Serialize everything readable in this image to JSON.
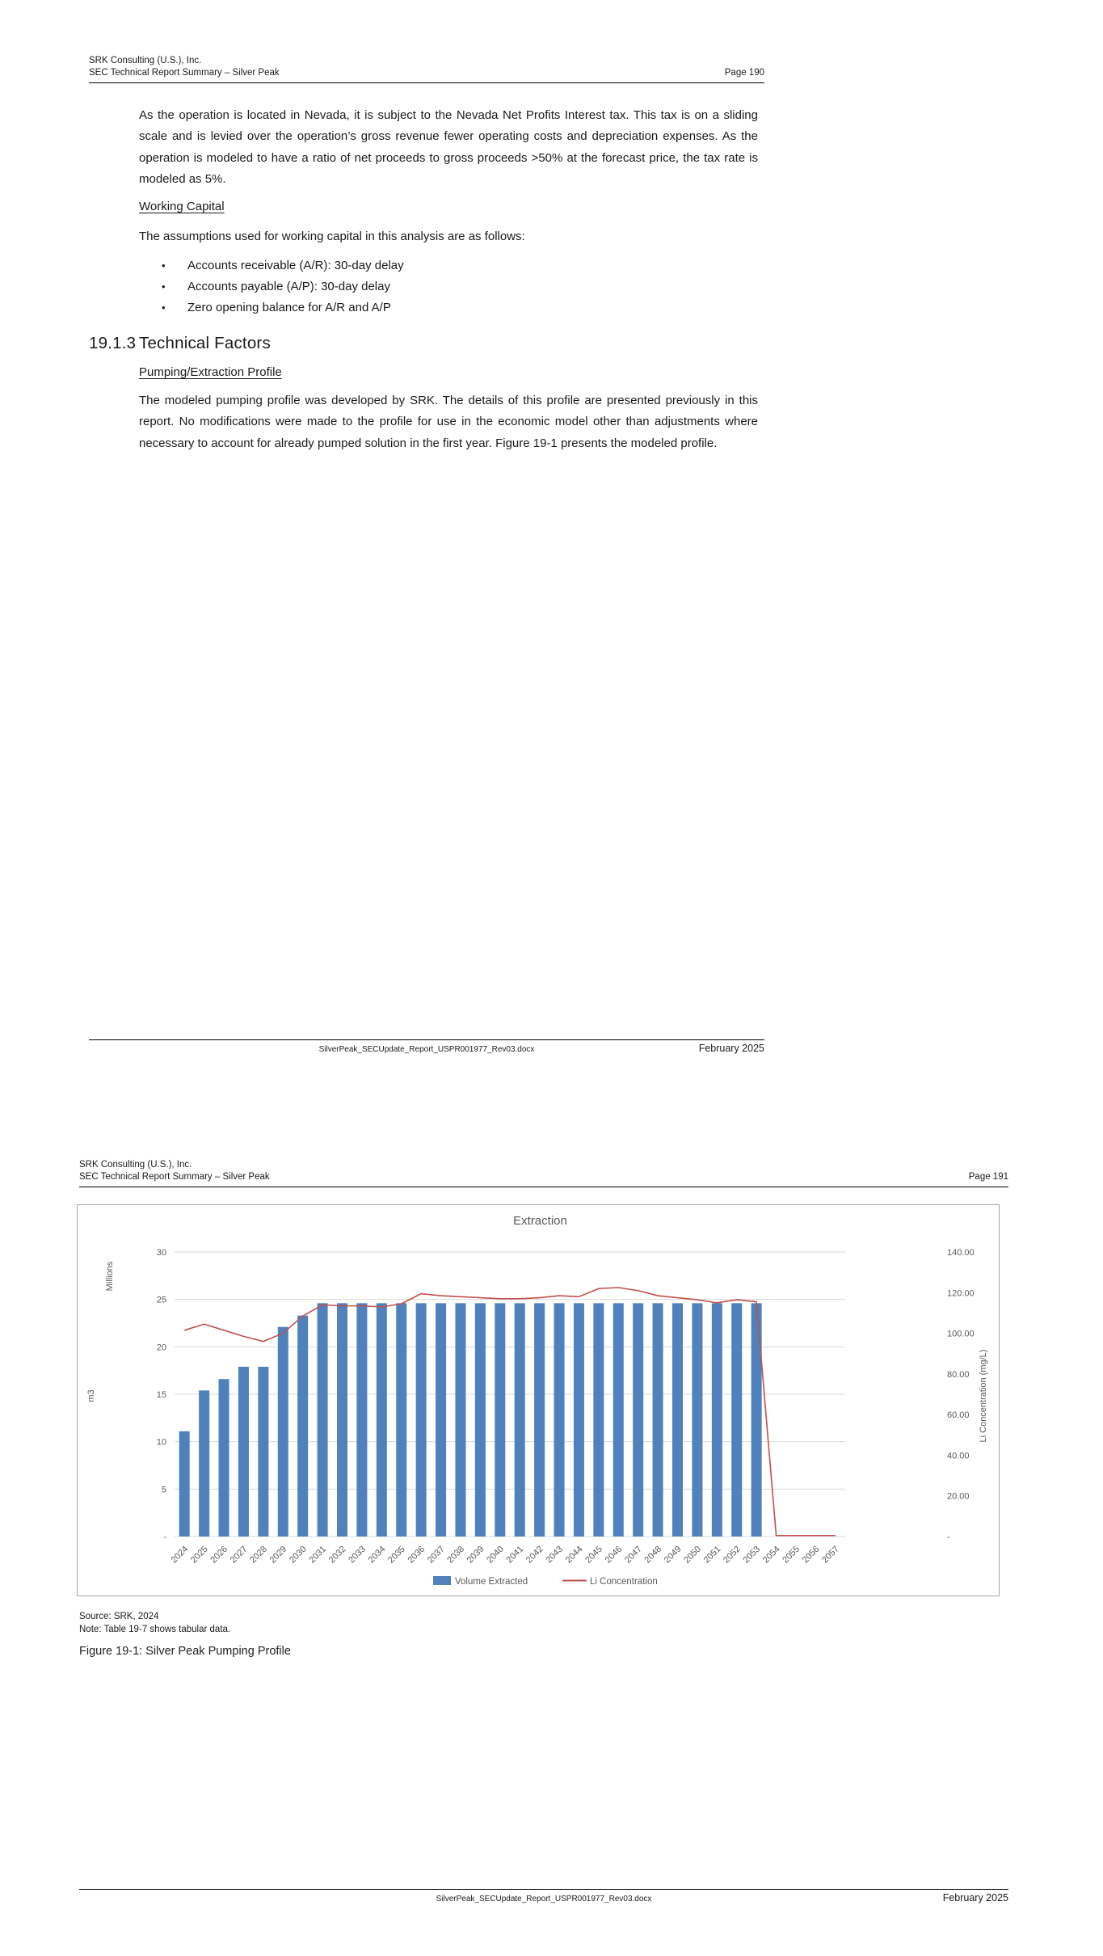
{
  "page1": {
    "header": {
      "line1": "SRK Consulting (U.S.), Inc.",
      "line2": "SEC Technical Report Summary – Silver Peak",
      "page_label": "Page 190"
    },
    "para1": "As the operation is located in Nevada, it is subject to the Nevada Net Profits Interest tax. This tax is on a sliding scale and is levied over the operation’s gross revenue fewer operating costs and depreciation expenses. As the operation is modeled to have a ratio of net proceeds to gross proceeds >50% at the forecast price, the tax rate is modeled as 5%.",
    "working_capital_heading": "Working Capital",
    "assumptions_intro": "The assumptions used for working capital in this analysis are as follows:",
    "bullet_glyph": "•",
    "bullets": [
      "Accounts receivable (A/R): 30-day delay",
      "Accounts payable (A/P): 30-day delay",
      "Zero opening balance for A/R and A/P"
    ],
    "section_number": "19.1.3",
    "section_title": "Technical Factors",
    "subsection_heading": "Pumping/Extraction Profile",
    "para2": "The modeled pumping profile was developed by SRK. The details of this profile are presented previously in this report. No modifications were made to the profile for use in the economic model other than adjustments where necessary to account for already pumped solution in the first year. Figure 19-1 presents the modeled profile.",
    "footer": {
      "filename": "SilverPeak_SECUpdate_Report_USPR001977_Rev03.docx",
      "date": "February 2025"
    }
  },
  "page2": {
    "header": {
      "line1": "SRK Consulting (U.S.), Inc.",
      "line2": "SEC Technical Report Summary – Silver Peak",
      "page_label": "Page 191"
    },
    "source_note": "Source: SRK, 2024",
    "table_note": "Note: Table 19-7 shows tabular data.",
    "figure_caption": "Figure 19-1: Silver Peak Pumping Profile",
    "footer": {
      "filename": "SilverPeak_SECUpdate_Report_USPR001977_Rev03.docx",
      "date": "February 2025"
    }
  },
  "chart_data": {
    "type": "bar+line",
    "title": "Extraction",
    "categories": [
      "2024",
      "2025",
      "2026",
      "2027",
      "2028",
      "2029",
      "2030",
      "2031",
      "2032",
      "2033",
      "2034",
      "2035",
      "2036",
      "2037",
      "2038",
      "2039",
      "2040",
      "2041",
      "2042",
      "2043",
      "2044",
      "2045",
      "2046",
      "2047",
      "2048",
      "2049",
      "2050",
      "2051",
      "2052",
      "2053",
      "2054",
      "2055",
      "2056",
      "2057"
    ],
    "series": [
      {
        "name": "Volume Extracted",
        "type": "bar",
        "axis": "left",
        "color": "#4F81BD",
        "values": [
          11.1,
          15.4,
          16.6,
          17.9,
          17.9,
          22.1,
          23.3,
          24.6,
          24.6,
          24.6,
          24.6,
          24.6,
          24.6,
          24.6,
          24.6,
          24.6,
          24.6,
          24.6,
          24.6,
          24.6,
          24.6,
          24.6,
          24.6,
          24.6,
          24.6,
          24.6,
          24.6,
          24.6,
          24.6,
          24.6,
          0,
          0,
          0,
          0
        ]
      },
      {
        "name": "Li Concentration",
        "type": "line",
        "axis": "right",
        "color": "#C0504D",
        "values": [
          101.5,
          104.5,
          101.5,
          98.5,
          96.0,
          100.0,
          108.5,
          114.0,
          113.5,
          113.5,
          113.0,
          114.5,
          119.5,
          118.5,
          118.0,
          117.5,
          117.0,
          117.0,
          117.5,
          118.5,
          118.0,
          122.0,
          122.5,
          121.0,
          118.5,
          117.5,
          116.5,
          115.0,
          116.5,
          115.5,
          0.5,
          0.5,
          0.5,
          0.5
        ]
      }
    ],
    "left_axis": {
      "display_unit": "Millions",
      "title": "m3",
      "max": 30,
      "tick_step": 5,
      "tick_labels": [
        "30",
        "25",
        "20",
        "15",
        "10",
        "5",
        "-"
      ]
    },
    "right_axis": {
      "title": "Li Concentration (mg/L)",
      "max": 140,
      "tick_step": 20,
      "tick_labels": [
        "140.00",
        "120.00",
        "100.00",
        "80.00",
        "60.00",
        "40.00",
        "20.00",
        "-"
      ]
    },
    "grid": true,
    "legend_position": "bottom",
    "style": {
      "grid_color": "#D9D9D9",
      "axis_text_color": "#595959",
      "box_border_color": "#A6A6A6"
    }
  }
}
